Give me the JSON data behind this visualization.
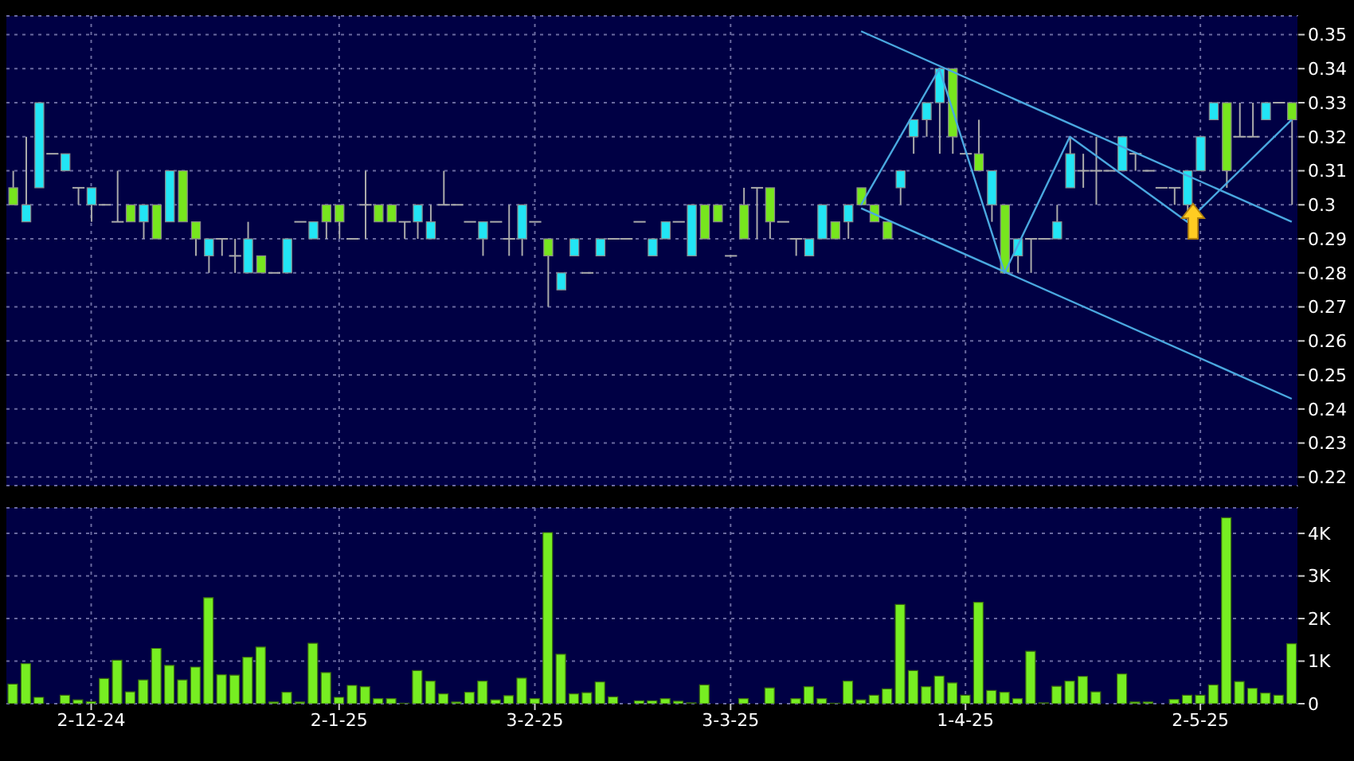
{
  "chart_data": [
    {
      "type": "candlestick",
      "categories": [
        null,
        null,
        null,
        null,
        null,
        null,
        null,
        null,
        null,
        null,
        null,
        null,
        null,
        null,
        null,
        null,
        null,
        null,
        null,
        null,
        null,
        null,
        null,
        null,
        null,
        null,
        null,
        null,
        null,
        null,
        null,
        null,
        null,
        null,
        null,
        null,
        null,
        null,
        null,
        null,
        null,
        null,
        null,
        null,
        null,
        null,
        null,
        null,
        null,
        null,
        null,
        null,
        null,
        null,
        null,
        null,
        null,
        null,
        null,
        null,
        null,
        null,
        null,
        null,
        null,
        null,
        null,
        null,
        null,
        null,
        null,
        null,
        null,
        null,
        null,
        null,
        null,
        null,
        null,
        null,
        null,
        null,
        null,
        null,
        null,
        null,
        null,
        null,
        null,
        null,
        null,
        null,
        null,
        null,
        null,
        null,
        null,
        null,
        null
      ],
      "ohlc": [
        [
          0.305,
          0.31,
          0.3,
          0.3
        ],
        [
          0.295,
          0.32,
          0.295,
          0.3
        ],
        [
          0.305,
          0.33,
          0.305,
          0.33
        ],
        [
          0.315,
          0.315,
          0.315,
          0.315
        ],
        [
          0.31,
          0.315,
          0.31,
          0.315
        ],
        [
          0.305,
          0.305,
          0.3,
          0.305
        ],
        [
          0.3,
          0.305,
          0.295,
          0.305
        ],
        [
          0.3,
          0.3,
          0.3,
          0.3
        ],
        [
          0.295,
          0.31,
          0.295,
          0.295
        ],
        [
          0.3,
          0.3,
          0.295,
          0.295
        ],
        [
          0.295,
          0.3,
          0.29,
          0.3
        ],
        [
          0.3,
          0.3,
          0.29,
          0.29
        ],
        [
          0.295,
          0.31,
          0.295,
          0.31
        ],
        [
          0.31,
          0.31,
          0.295,
          0.295
        ],
        [
          0.295,
          0.295,
          0.285,
          0.29
        ],
        [
          0.285,
          0.29,
          0.28,
          0.29
        ],
        [
          0.29,
          0.29,
          0.285,
          0.29
        ],
        [
          0.285,
          0.29,
          0.28,
          0.285
        ],
        [
          0.28,
          0.295,
          0.28,
          0.29
        ],
        [
          0.285,
          0.285,
          0.28,
          0.28
        ],
        [
          0.28,
          0.28,
          0.28,
          0.28
        ],
        [
          0.28,
          0.29,
          0.28,
          0.29
        ],
        [
          0.295,
          0.295,
          0.295,
          0.295
        ],
        [
          0.29,
          0.295,
          0.29,
          0.295
        ],
        [
          0.3,
          0.3,
          0.29,
          0.295
        ],
        [
          0.3,
          0.3,
          0.29,
          0.295
        ],
        [
          0.29,
          0.29,
          0.29,
          0.29
        ],
        [
          0.3,
          0.31,
          0.29,
          0.3
        ],
        [
          0.3,
          0.3,
          0.295,
          0.295
        ],
        [
          0.3,
          0.3,
          0.295,
          0.295
        ],
        [
          0.295,
          0.295,
          0.29,
          0.295
        ],
        [
          0.295,
          0.3,
          0.29,
          0.3
        ],
        [
          0.29,
          0.3,
          0.29,
          0.295
        ],
        [
          0.3,
          0.31,
          0.3,
          0.3
        ],
        [
          0.3,
          0.3,
          0.3,
          0.3
        ],
        [
          0.295,
          0.295,
          0.295,
          0.295
        ],
        [
          0.29,
          0.295,
          0.285,
          0.295
        ],
        [
          0.295,
          0.295,
          0.295,
          0.295
        ],
        [
          0.29,
          0.3,
          0.285,
          0.29
        ],
        [
          0.29,
          0.3,
          0.285,
          0.3
        ],
        [
          0.295,
          0.295,
          0.295,
          0.295
        ],
        [
          0.29,
          0.29,
          0.27,
          0.285
        ],
        [
          0.275,
          0.28,
          0.275,
          0.28
        ],
        [
          0.285,
          0.29,
          0.285,
          0.29
        ],
        [
          0.28,
          0.28,
          0.28,
          0.28
        ],
        [
          0.285,
          0.29,
          0.285,
          0.29
        ],
        [
          0.29,
          0.29,
          0.29,
          0.29
        ],
        [
          0.29,
          0.29,
          0.29,
          0.29
        ],
        [
          0.295,
          0.295,
          0.295,
          0.295
        ],
        [
          0.285,
          0.29,
          0.285,
          0.29
        ],
        [
          0.29,
          0.295,
          0.29,
          0.295
        ],
        [
          0.295,
          0.295,
          0.295,
          0.295
        ],
        [
          0.285,
          0.3,
          0.285,
          0.3
        ],
        [
          0.3,
          0.3,
          0.29,
          0.29
        ],
        [
          0.3,
          0.3,
          0.295,
          0.295
        ],
        [
          0.285,
          0.285,
          0.285,
          0.285
        ],
        [
          0.3,
          0.305,
          0.29,
          0.29
        ],
        [
          0.305,
          0.305,
          0.29,
          0.305
        ],
        [
          0.305,
          0.305,
          0.29,
          0.295
        ],
        [
          0.295,
          0.295,
          0.295,
          0.295
        ],
        [
          0.29,
          0.29,
          0.285,
          0.29
        ],
        [
          0.285,
          0.29,
          0.285,
          0.29
        ],
        [
          0.29,
          0.3,
          0.29,
          0.3
        ],
        [
          0.295,
          0.295,
          0.29,
          0.29
        ],
        [
          0.295,
          0.3,
          0.29,
          0.3
        ],
        [
          0.305,
          0.305,
          0.3,
          0.3
        ],
        [
          0.3,
          0.3,
          0.295,
          0.295
        ],
        [
          0.295,
          0.295,
          0.29,
          0.29
        ],
        [
          0.305,
          0.31,
          0.3,
          0.31
        ],
        [
          0.32,
          0.325,
          0.315,
          0.325
        ],
        [
          0.325,
          0.33,
          0.32,
          0.33
        ],
        [
          0.33,
          0.34,
          0.315,
          0.34
        ],
        [
          0.34,
          0.34,
          0.315,
          0.32
        ],
        [
          0.315,
          0.315,
          0.315,
          0.315
        ],
        [
          0.315,
          0.325,
          0.31,
          0.31
        ],
        [
          0.3,
          0.31,
          0.295,
          0.31
        ],
        [
          0.3,
          0.3,
          0.28,
          0.28
        ],
        [
          0.285,
          0.29,
          0.28,
          0.29
        ],
        [
          0.29,
          0.29,
          0.28,
          0.29
        ],
        [
          0.29,
          0.29,
          0.29,
          0.29
        ],
        [
          0.29,
          0.3,
          0.29,
          0.295
        ],
        [
          0.305,
          0.32,
          0.305,
          0.315
        ],
        [
          0.31,
          0.315,
          0.305,
          0.31
        ],
        [
          0.31,
          0.32,
          0.3,
          0.31
        ],
        [
          0.31,
          0.31,
          0.31,
          0.31
        ],
        [
          0.31,
          0.32,
          0.31,
          0.32
        ],
        [
          0.315,
          0.315,
          0.31,
          0.315
        ],
        [
          0.31,
          0.31,
          0.31,
          0.31
        ],
        [
          0.305,
          0.305,
          0.305,
          0.305
        ],
        [
          0.305,
          0.305,
          0.3,
          0.305
        ],
        [
          0.3,
          0.31,
          0.295,
          0.31
        ],
        [
          0.31,
          0.32,
          0.31,
          0.32
        ],
        [
          0.325,
          0.33,
          0.325,
          0.33
        ],
        [
          0.33,
          0.33,
          0.305,
          0.31
        ],
        [
          0.32,
          0.33,
          0.32,
          0.32
        ],
        [
          0.32,
          0.33,
          0.32,
          0.32
        ],
        [
          0.325,
          0.33,
          0.325,
          0.33
        ],
        [
          0.33,
          0.33,
          0.33,
          0.33
        ],
        [
          0.33,
          0.33,
          0.3,
          0.325
        ]
      ],
      "colors": [
        "#77e61e",
        "#22e5f5",
        "#22e5f5",
        "#aaaaaa",
        "#22e5f5",
        "#aaaaaa",
        "#22e5f5",
        "#aaaaaa",
        "#aaaaaa",
        "#77e61e",
        "#22e5f5",
        "#77e61e",
        "#22e5f5",
        "#77e61e",
        "#77e61e",
        "#22e5f5",
        "#aaaaaa",
        "#aaaaaa",
        "#22e5f5",
        "#77e61e",
        "#aaaaaa",
        "#22e5f5",
        "#aaaaaa",
        "#22e5f5",
        "#77e61e",
        "#77e61e",
        "#aaaaaa",
        "#aaaaaa",
        "#77e61e",
        "#77e61e",
        "#aaaaaa",
        "#22e5f5",
        "#22e5f5",
        "#aaaaaa",
        "#aaaaaa",
        "#aaaaaa",
        "#22e5f5",
        "#aaaaaa",
        "#aaaaaa",
        "#22e5f5",
        "#aaaaaa",
        "#77e61e",
        "#22e5f5",
        "#22e5f5",
        "#aaaaaa",
        "#22e5f5",
        "#aaaaaa",
        "#aaaaaa",
        "#aaaaaa",
        "#22e5f5",
        "#22e5f5",
        "#aaaaaa",
        "#22e5f5",
        "#77e61e",
        "#77e61e",
        "#aaaaaa",
        "#77e61e",
        "#aaaaaa",
        "#77e61e",
        "#aaaaaa",
        "#aaaaaa",
        "#22e5f5",
        "#22e5f5",
        "#77e61e",
        "#22e5f5",
        "#77e61e",
        "#77e61e",
        "#77e61e",
        "#22e5f5",
        "#22e5f5",
        "#22e5f5",
        "#22e5f5",
        "#77e61e",
        "#aaaaaa",
        "#77e61e",
        "#22e5f5",
        "#77e61e",
        "#22e5f5",
        "#aaaaaa",
        "#aaaaaa",
        "#22e5f5",
        "#22e5f5",
        "#aaaaaa",
        "#aaaaaa",
        "#aaaaaa",
        "#22e5f5",
        "#aaaaaa",
        "#aaaaaa",
        "#aaaaaa",
        "#aaaaaa",
        "#22e5f5",
        "#22e5f5",
        "#22e5f5",
        "#77e61e",
        "#aaaaaa",
        "#aaaaaa",
        "#22e5f5",
        "#aaaaaa",
        "#77e61e"
      ],
      "series": [
        {
          "type": "line",
          "color": "#4aa8e0",
          "values": [
            null,
            null,
            null,
            null,
            null,
            null,
            null,
            null,
            null,
            null,
            null,
            null,
            null,
            null,
            null,
            null,
            null,
            null,
            null,
            null,
            null,
            null,
            null,
            null,
            null,
            null,
            null,
            null,
            null,
            null,
            null,
            null,
            null,
            null,
            null,
            null,
            null,
            null,
            null,
            null,
            null,
            null,
            null,
            null,
            null,
            null,
            null,
            null,
            null,
            null,
            null,
            null,
            null,
            null,
            null,
            null,
            null,
            null,
            null,
            null,
            null,
            null,
            null,
            null,
            null,
            0.351,
            null,
            null,
            null,
            null,
            null,
            null,
            null,
            null,
            null,
            null,
            null,
            null,
            null,
            null,
            null,
            null,
            null,
            null,
            null,
            null,
            null,
            null,
            null,
            null,
            null,
            null,
            null,
            null,
            null,
            null,
            null,
            null,
            0.295
          ]
        },
        {
          "type": "line",
          "color": "#4aa8e0",
          "values": [
            null,
            null,
            null,
            null,
            null,
            null,
            null,
            null,
            null,
            null,
            null,
            null,
            null,
            null,
            null,
            null,
            null,
            null,
            null,
            null,
            null,
            null,
            null,
            null,
            null,
            null,
            null,
            null,
            null,
            null,
            null,
            null,
            null,
            null,
            null,
            null,
            null,
            null,
            null,
            null,
            null,
            null,
            null,
            null,
            null,
            null,
            null,
            null,
            null,
            null,
            null,
            null,
            null,
            null,
            null,
            null,
            null,
            null,
            null,
            null,
            null,
            null,
            null,
            null,
            null,
            0.299,
            null,
            null,
            null,
            null,
            null,
            null,
            null,
            null,
            null,
            null,
            null,
            null,
            null,
            null,
            null,
            null,
            null,
            null,
            null,
            null,
            null,
            null,
            null,
            null,
            null,
            null,
            null,
            null,
            null,
            null,
            null,
            null,
            0.243
          ]
        },
        {
          "type": "line",
          "color": "#4aa8e0",
          "values": [
            null,
            null,
            null,
            null,
            null,
            null,
            null,
            null,
            null,
            null,
            null,
            null,
            null,
            null,
            null,
            null,
            null,
            null,
            null,
            null,
            null,
            null,
            null,
            null,
            null,
            null,
            null,
            null,
            null,
            null,
            null,
            null,
            null,
            null,
            null,
            null,
            null,
            null,
            null,
            null,
            null,
            null,
            null,
            null,
            null,
            null,
            null,
            null,
            null,
            null,
            null,
            null,
            null,
            null,
            null,
            null,
            null,
            null,
            null,
            null,
            null,
            null,
            null,
            null,
            null,
            0.3,
            null,
            null,
            null,
            null,
            null,
            0.34,
            null,
            null,
            null,
            null,
            0.28,
            null,
            null,
            null,
            null,
            0.32,
            null,
            null,
            null,
            null,
            null,
            null,
            null,
            null,
            0.295,
            null,
            null,
            null,
            null,
            null,
            null,
            null,
            0.325
          ]
        }
      ],
      "ylim": [
        0.2175,
        0.3555
      ],
      "yticks": [
        0.22,
        0.23,
        0.24,
        0.25,
        0.26,
        0.27,
        0.28,
        0.29,
        0.3,
        0.31,
        0.32,
        0.33,
        0.34,
        0.35
      ],
      "grid": true,
      "tick_labels": "y"
    },
    {
      "type": "bar",
      "categories": [
        null,
        null,
        null,
        null,
        null,
        null,
        "2-12-24",
        null,
        null,
        null,
        null,
        null,
        null,
        null,
        null,
        null,
        null,
        null,
        null,
        null,
        null,
        null,
        null,
        null,
        null,
        "2-1-25",
        null,
        null,
        null,
        null,
        null,
        null,
        null,
        null,
        null,
        null,
        null,
        null,
        null,
        null,
        "3-2-25",
        null,
        null,
        null,
        null,
        null,
        null,
        null,
        null,
        null,
        null,
        null,
        null,
        null,
        null,
        "3-3-25",
        null,
        null,
        null,
        null,
        null,
        null,
        null,
        null,
        null,
        null,
        null,
        null,
        null,
        null,
        null,
        null,
        null,
        "1-4-25",
        null,
        null,
        null,
        null,
        null,
        null,
        null,
        null,
        null,
        null,
        null,
        null,
        null,
        null,
        null,
        null,
        null,
        "2-5-25",
        null,
        null,
        null,
        null,
        null,
        null,
        null
      ],
      "values": [
        0.46,
        0.94,
        0.15,
        0,
        0.2,
        0.09,
        0.05,
        0.59,
        1.02,
        0.28,
        0.56,
        1.3,
        0.9,
        0.56,
        0.86,
        2.49,
        0.68,
        0.67,
        1.09,
        1.33,
        0.04,
        0.27,
        0.04,
        1.42,
        0.73,
        0.15,
        0.43,
        0.4,
        0.12,
        0.12,
        0.01,
        0.78,
        0.53,
        0.23,
        0.04,
        0.27,
        0.53,
        0.09,
        0.19,
        0.6,
        0.12,
        4.02,
        1.16,
        0.23,
        0.26,
        0.51,
        0.16,
        0,
        0.07,
        0.07,
        0.12,
        0.06,
        0.02,
        0.44,
        0,
        0,
        0.12,
        0,
        0.37,
        0,
        0.12,
        0.4,
        0.12,
        0.01,
        0.53,
        0.09,
        0.2,
        0.35,
        2.33,
        0.78,
        0.4,
        0.65,
        0.49,
        0.2,
        2.38,
        0.31,
        0.27,
        0.12,
        1.23,
        0.02,
        0.41,
        0.53,
        0.64,
        0.28,
        0,
        0.7,
        0.04,
        0.04,
        0,
        0.1,
        0.2,
        0.2,
        0.44,
        4.37,
        0.52,
        0.36,
        0.25,
        0.2,
        1.41
      ],
      "color": "#77ee22",
      "ylim": [
        0,
        4.6
      ],
      "yticks": [
        0,
        {
          "value": 1,
          "label": "1K"
        },
        {
          "value": 2,
          "label": "2K"
        },
        {
          "value": 3,
          "label": "3K"
        },
        {
          "value": 4,
          "label": "4K"
        }
      ],
      "grid": true
    }
  ]
}
